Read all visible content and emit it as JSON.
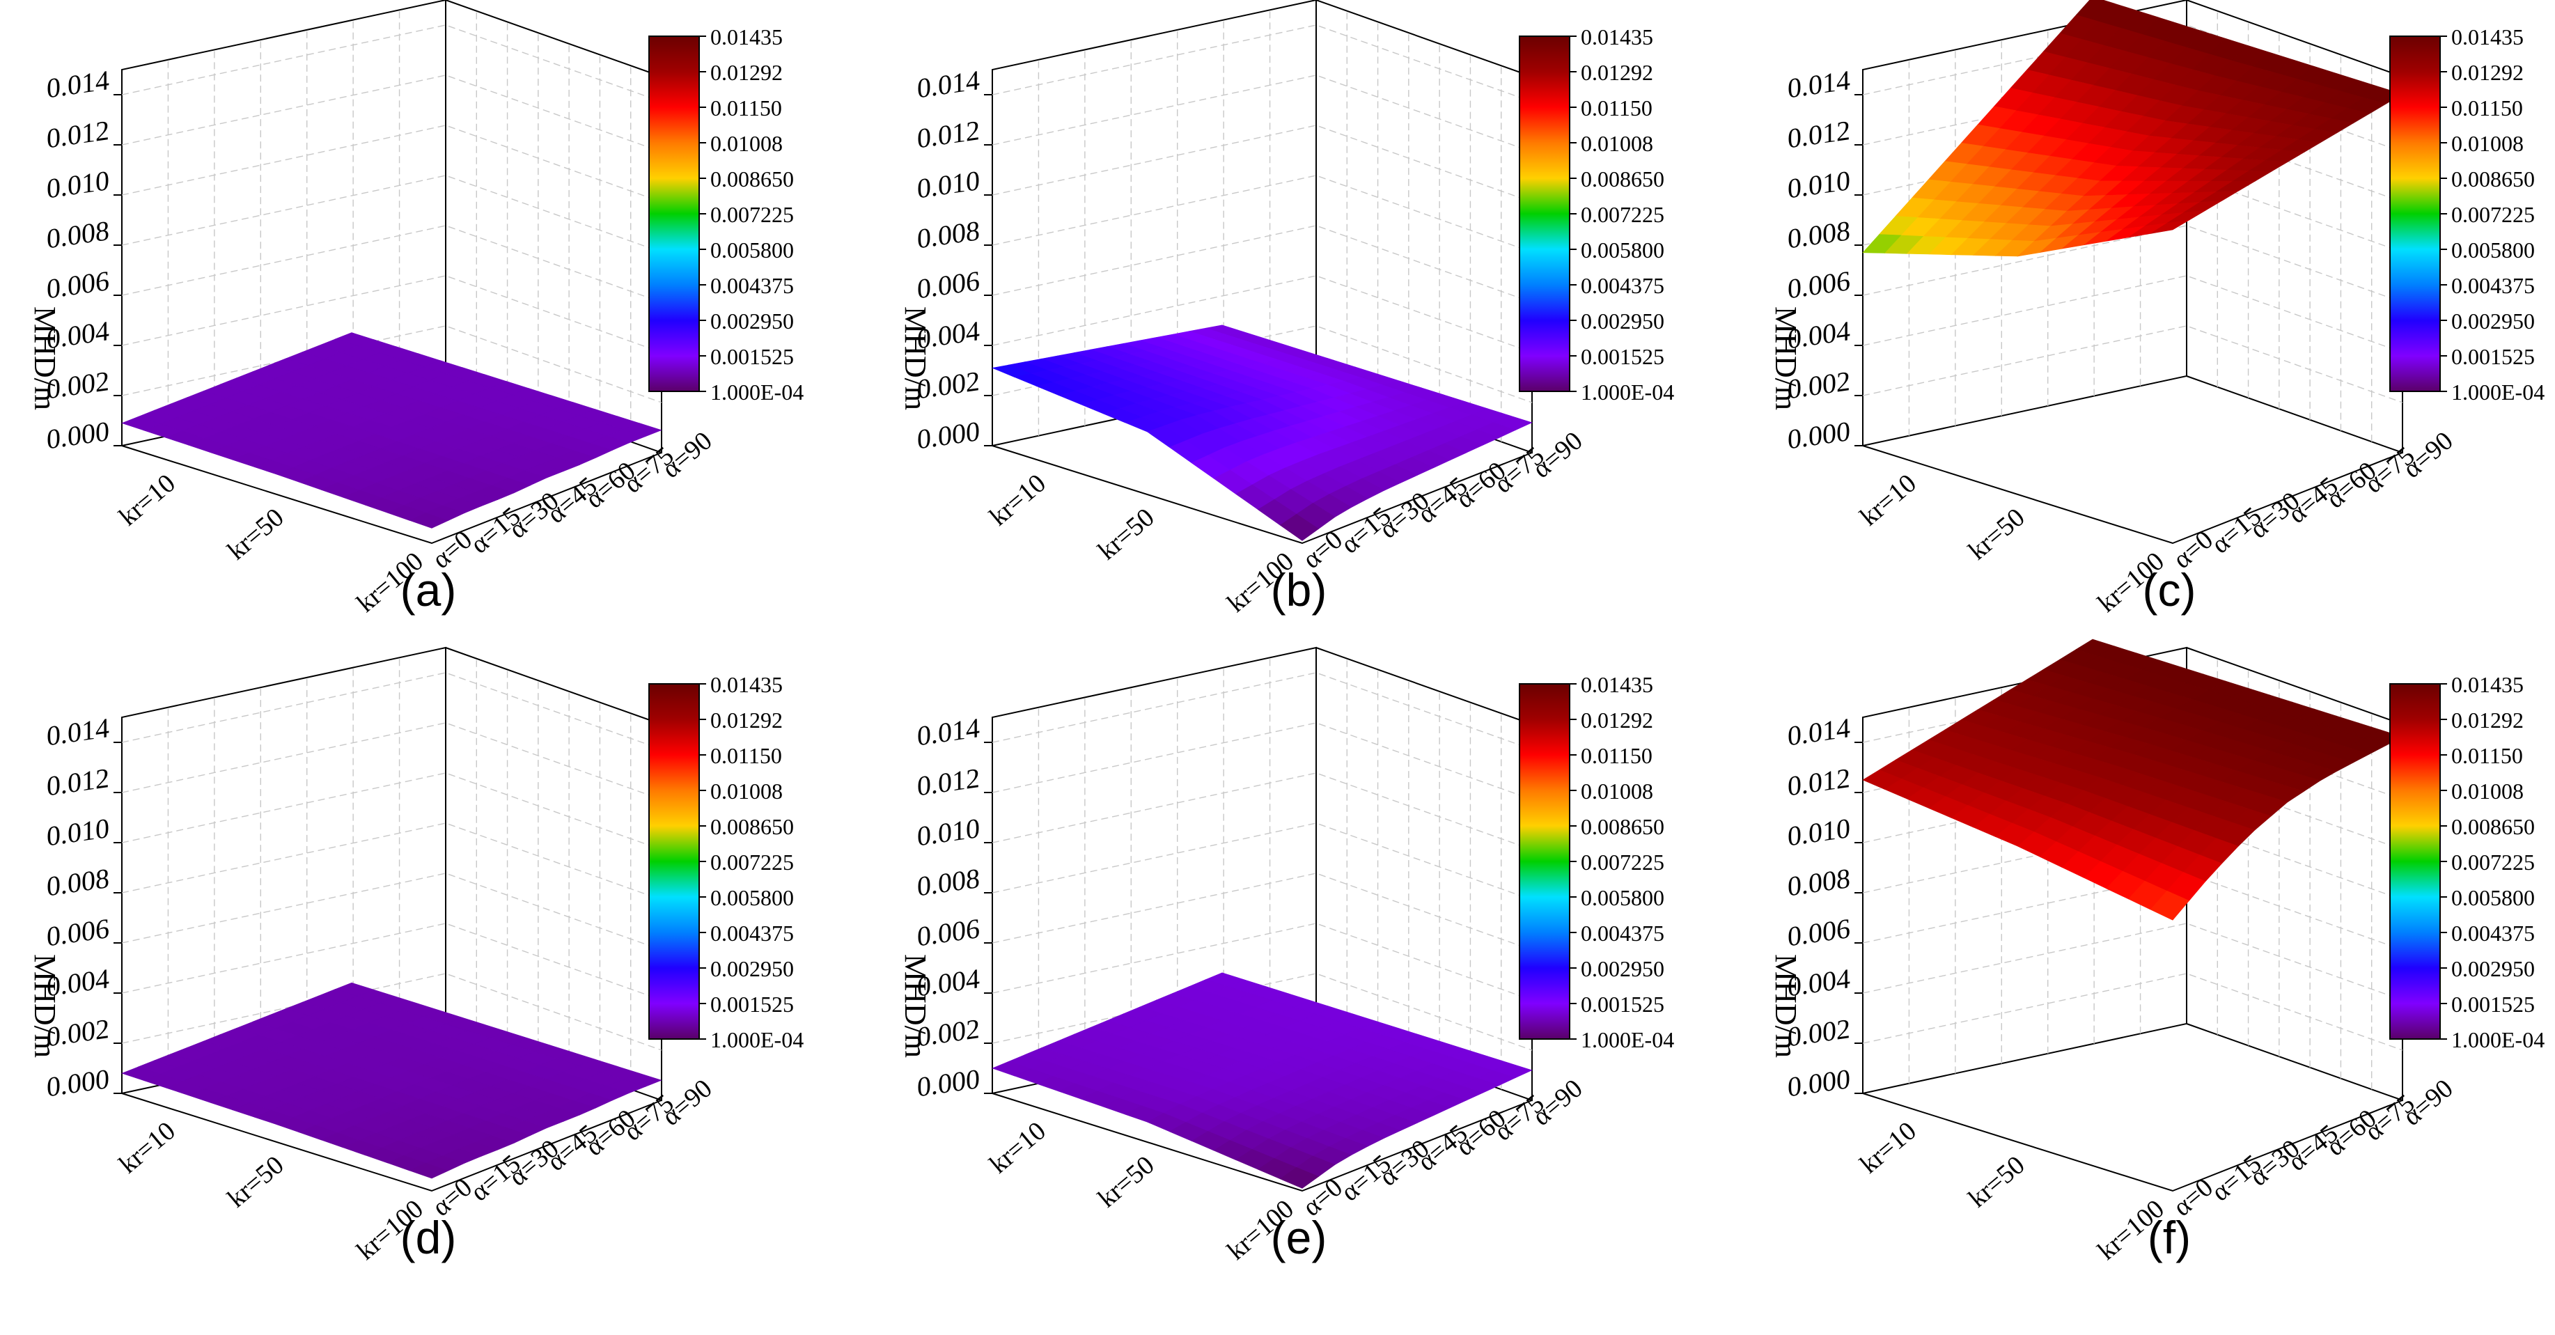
{
  "figure": {
    "y_axis_label": "MHD/m",
    "z_ticks": [
      "0.000",
      "0.002",
      "0.004",
      "0.006",
      "0.008",
      "0.010",
      "0.012",
      "0.014"
    ],
    "kr_ticks": [
      "kr=10",
      "kr=50",
      "kr=100"
    ],
    "alpha_ticks": [
      "α=0",
      "α=15",
      "α=30",
      "α=45",
      "α=60",
      "α=75",
      "α=90"
    ],
    "colorbar_labels": [
      "0.01435",
      "0.01292",
      "0.01150",
      "0.01008",
      "0.008650",
      "0.007225",
      "0.005800",
      "0.004375",
      "0.002950",
      "0.001525",
      "1.000E-04"
    ],
    "colorbar_stops": [
      "#6b0000",
      "#a00000",
      "#ff0000",
      "#ff7a00",
      "#ffd000",
      "#00d000",
      "#00e0ff",
      "#0080ff",
      "#2000ff",
      "#8000ff",
      "#5a0068"
    ],
    "surface_edge": "#5b1040"
  },
  "chart_data": [
    {
      "type": "surface3d",
      "label": "(a)",
      "zlabel": "MHD/m",
      "zlim": [
        0,
        0.015
      ],
      "kr": [
        10,
        50,
        100
      ],
      "alpha": [
        0,
        15,
        30,
        45,
        60,
        75,
        90
      ],
      "z_front_edge_by_alpha": [
        0.0006,
        0.0007,
        0.0007,
        0.0008,
        0.0008,
        0.0009,
        0.0009
      ],
      "z_left_edge_by_kr": [
        0.0009,
        0.0008,
        0.0006
      ],
      "z_corner_kr10_alpha90": 0.0009,
      "colorscale": [
        0.0001,
        0.01435
      ]
    },
    {
      "type": "surface3d",
      "label": "(b)",
      "zlabel": "MHD/m",
      "zlim": [
        0,
        0.015
      ],
      "kr": [
        10,
        50,
        100
      ],
      "alpha": [
        0,
        15,
        30,
        45,
        60,
        75,
        90
      ],
      "z_front_edge_by_alpha": [
        0.0001,
        0.0006,
        0.0008,
        0.0009,
        0.001,
        0.0011,
        0.0012
      ],
      "z_left_edge_by_kr": [
        0.0031,
        0.0025,
        0.0001
      ],
      "z_corner_kr10_alpha90": 0.0012,
      "colorscale": [
        0.0001,
        0.01435
      ]
    },
    {
      "type": "surface3d",
      "label": "(c)",
      "zlabel": "MHD/m",
      "zlim": [
        0,
        0.015
      ],
      "kr": [
        10,
        50,
        100
      ],
      "alpha": [
        0,
        15,
        30,
        45,
        60,
        75,
        90
      ],
      "z_front_edge_by_alpha": [
        0.0125,
        0.0128,
        0.0131,
        0.0134,
        0.0137,
        0.014,
        0.0143
      ],
      "z_left_edge_by_kr": [
        0.0077,
        0.0095,
        0.0125
      ],
      "z_corner_kr10_alpha90": 0.0143,
      "colorscale": [
        0.0001,
        0.01435
      ]
    },
    {
      "type": "surface3d",
      "label": "(d)",
      "zlabel": "MHD/m",
      "zlim": [
        0,
        0.015
      ],
      "kr": [
        10,
        50,
        100
      ],
      "alpha": [
        0,
        15,
        30,
        45,
        60,
        75,
        90
      ],
      "z_front_edge_by_alpha": [
        0.0005,
        0.0006,
        0.0006,
        0.0007,
        0.0007,
        0.0008,
        0.0008
      ],
      "z_left_edge_by_kr": [
        0.0008,
        0.0007,
        0.0005
      ],
      "z_corner_kr10_alpha90": 0.0008,
      "colorscale": [
        0.0001,
        0.01435
      ]
    },
    {
      "type": "surface3d",
      "label": "(e)",
      "zlabel": "MHD/m",
      "zlim": [
        0,
        0.015
      ],
      "kr": [
        10,
        50,
        100
      ],
      "alpha": [
        0,
        15,
        30,
        45,
        60,
        75,
        90
      ],
      "z_front_edge_by_alpha": [
        0.0001,
        0.0006,
        0.0008,
        0.0009,
        0.001,
        0.0011,
        0.0012
      ],
      "z_left_edge_by_kr": [
        0.001,
        0.0008,
        0.0001
      ],
      "z_corner_kr10_alpha90": 0.0012,
      "colorscale": [
        0.0001,
        0.01435
      ]
    },
    {
      "type": "surface3d",
      "label": "(f)",
      "zlabel": "MHD/m",
      "zlim": [
        0,
        0.015
      ],
      "kr": [
        10,
        50,
        100
      ],
      "alpha": [
        0,
        15,
        30,
        45,
        60,
        75,
        90
      ],
      "z_front_edge_by_alpha": [
        0.0108,
        0.012,
        0.013,
        0.0137,
        0.0141,
        0.0143,
        0.0145
      ],
      "z_left_edge_by_kr": [
        0.0125,
        0.0118,
        0.0108
      ],
      "z_corner_kr10_alpha90": 0.0145,
      "colorscale": [
        0.0001,
        0.01435
      ]
    }
  ]
}
